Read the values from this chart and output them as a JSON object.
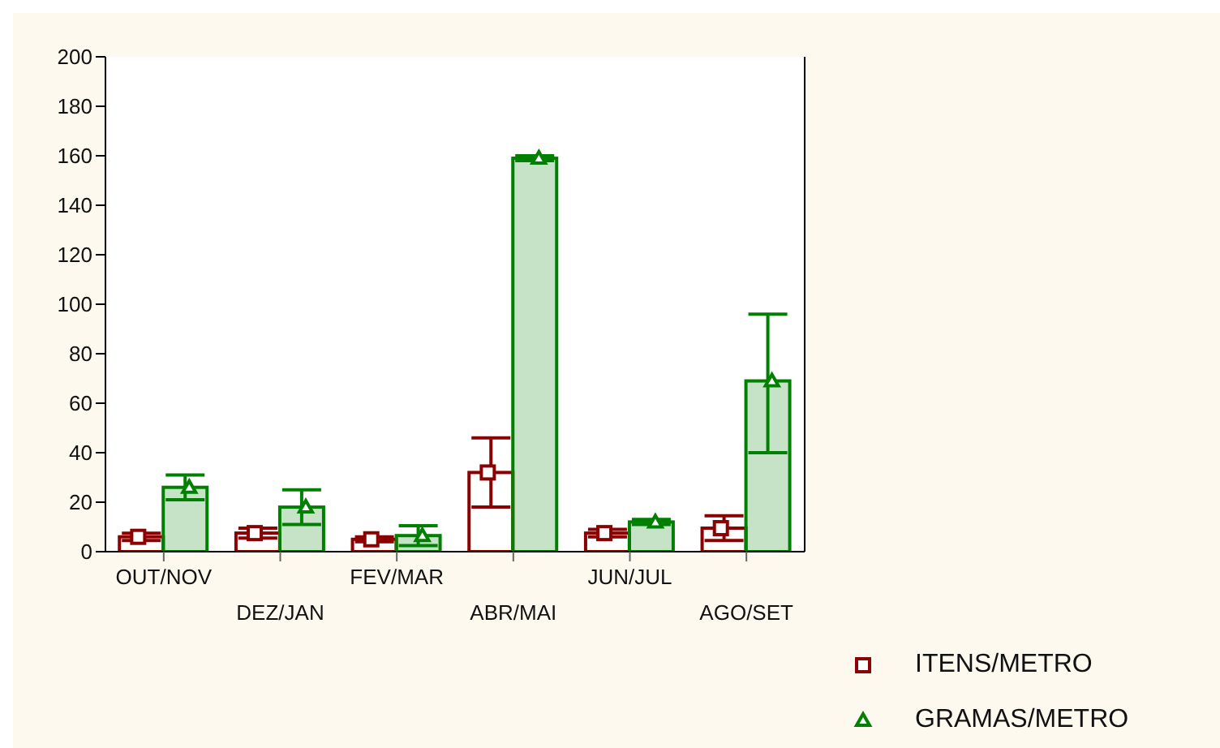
{
  "chart_data": {
    "type": "bar",
    "categories": [
      "OUT/NOV",
      "DEZ/JAN",
      "FEV/MAR",
      "ABR/MAI",
      "JUN/JUL",
      "AGO/SET"
    ],
    "series": [
      {
        "color": "#8b0000",
        "values": [
          6,
          7.5,
          5,
          32,
          7.5,
          9.5
        ],
        "errors": [
          1.5,
          2,
          1,
          14,
          1.5,
          5
        ]
      },
      {
        "color": "#008000",
        "values": [
          26,
          18,
          6.5,
          159,
          12,
          69
        ],
        "errors": [
          5,
          7,
          4,
          1,
          1,
          [
            40,
            96
          ]
        ]
      },
      {
        "type": "scatter",
        "name": "ITENS/METRO",
        "color": "#8b0000",
        "marker": "square",
        "x": [
          "OUT/NOV",
          "DEZ/JAN",
          "FEV/MAR",
          "ABR/MAI",
          "JUN/JUL",
          "AGO/SET"
        ],
        "values": [
          6,
          7.5,
          5,
          32,
          7.5,
          9.5
        ]
      },
      {
        "type": "scatter",
        "name": "GRAMAS/METRO",
        "color": "#008000",
        "marker": "triangle",
        "x": [
          "OUT/NOV",
          "DEZ/JAN",
          "FEV/MAR",
          "ABR/MAI",
          "JUN/JUL",
          "AGO/SET"
        ],
        "values": [
          26,
          18,
          6.5,
          159,
          12,
          69
        ]
      }
    ],
    "ylim": [
      0,
      200
    ],
    "yticks": [
      0,
      20,
      40,
      60,
      80,
      100,
      120,
      140,
      160,
      180,
      200
    ],
    "grid": false,
    "legend": "bottom right"
  }
}
